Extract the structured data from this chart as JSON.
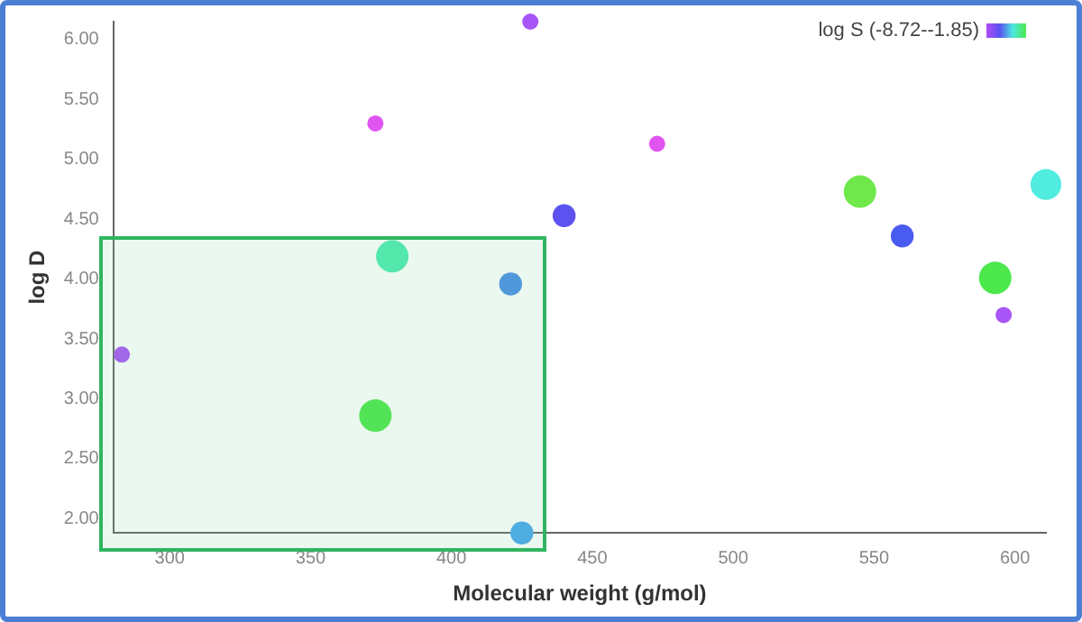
{
  "chart_data": {
    "type": "bubble",
    "xlabel": "Molecular weight (g/mol)",
    "ylabel": "log D",
    "legend_title": "log S (-8.72--1.85)",
    "x": [
      283,
      373,
      428,
      379,
      421,
      373,
      425,
      440,
      473,
      545,
      560,
      593,
      596,
      611
    ],
    "values": [
      3.37,
      5.3,
      6.15,
      4.19,
      3.96,
      2.86,
      1.88,
      4.53,
      5.13,
      4.73,
      4.36,
      4.01,
      3.7,
      4.79
    ],
    "sizes": [
      0.25,
      0.25,
      0.25,
      1,
      0.5,
      1,
      0.5,
      0.5,
      0.25,
      1,
      0.5,
      1,
      0.25,
      0.9
    ],
    "colors": [
      "#a855f7",
      "#e055f0",
      "#a855f7",
      "#4eebb0",
      "#4a8fe8",
      "#4ce84c",
      "#48a6ee",
      "#5b52f0",
      "#e055f0",
      "#6ee84a",
      "#4a5cf0",
      "#4ce84c",
      "#a855f7",
      "#50ece0"
    ],
    "xlim": [
      280,
      611
    ],
    "xticks": [
      300,
      350,
      400,
      450,
      500,
      550,
      600
    ],
    "ylim": [
      1.88,
      6.15
    ],
    "yticks": [
      {
        "value": 2,
        "label": "2.00"
      },
      {
        "value": 2.5,
        "label": "2.50"
      },
      {
        "value": 3,
        "label": "3.00"
      },
      {
        "value": 3.5,
        "label": "3.50"
      },
      {
        "value": 4,
        "label": "4.00"
      },
      {
        "value": 4.5,
        "label": "4.50"
      },
      {
        "value": 5,
        "label": "5.00"
      },
      {
        "value": 5.5,
        "label": "5.50"
      },
      {
        "value": 6,
        "label": "6.00"
      }
    ]
  }
}
